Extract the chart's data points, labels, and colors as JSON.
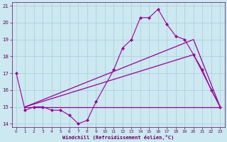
{
  "xlabel": "Windchill (Refroidissement éolien,°C)",
  "bg_color": "#cce8f0",
  "line_color": "#990099",
  "grid_color": "#aaccd8",
  "xlim": [
    -0.5,
    23.5
  ],
  "ylim": [
    13.8,
    21.2
  ],
  "yticks": [
    14,
    15,
    16,
    17,
    18,
    19,
    20,
    21
  ],
  "xticks": [
    0,
    1,
    2,
    3,
    4,
    5,
    6,
    7,
    8,
    9,
    10,
    11,
    12,
    13,
    14,
    15,
    16,
    17,
    18,
    19,
    20,
    21,
    22,
    23
  ],
  "series1_x": [
    0,
    1,
    2,
    3,
    4,
    5,
    6,
    7,
    8,
    9,
    11,
    12,
    13,
    14,
    15,
    16,
    17,
    18,
    19,
    20,
    21,
    22,
    23
  ],
  "series1_y": [
    17.0,
    14.8,
    15.0,
    15.0,
    14.8,
    14.8,
    14.5,
    14.0,
    14.2,
    15.3,
    17.2,
    18.5,
    19.0,
    20.3,
    20.3,
    20.8,
    19.9,
    19.2,
    19.0,
    18.1,
    17.2,
    16.0,
    15.0
  ],
  "series2_x": [
    1,
    23
  ],
  "series2_y": [
    15.0,
    15.0
  ],
  "series3_x": [
    1,
    20,
    23
  ],
  "series3_y": [
    15.0,
    18.1,
    15.0
  ],
  "series4_x": [
    1,
    20,
    23
  ],
  "series4_y": [
    15.0,
    19.0,
    15.0
  ]
}
